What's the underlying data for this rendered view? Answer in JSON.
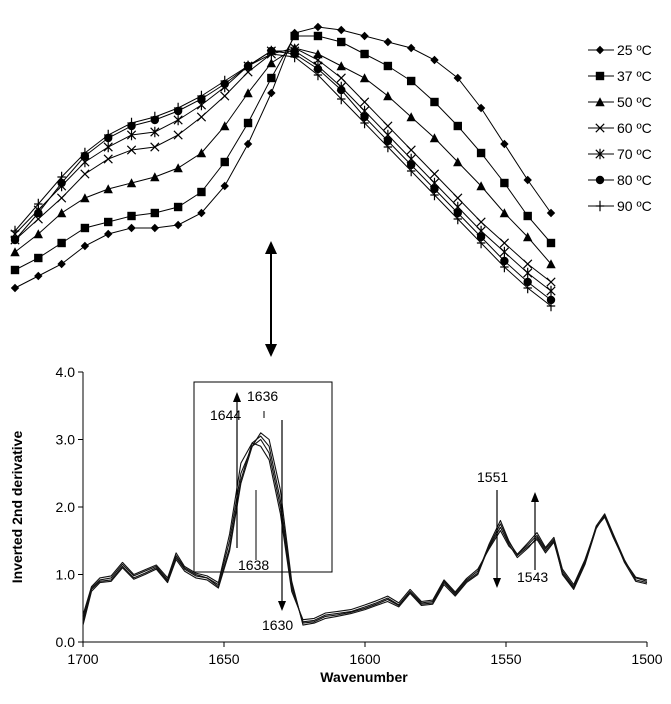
{
  "chart_data": [
    {
      "type": "line",
      "title": "",
      "xlabel": "",
      "ylabel": "",
      "x": [
        1660,
        1656,
        1652,
        1648,
        1644,
        1640,
        1636,
        1632,
        1628,
        1624,
        1620,
        1616,
        1612,
        1608,
        1604,
        1600,
        1596,
        1592,
        1588,
        1584,
        1580,
        1576,
        1572,
        1568
      ],
      "legend_position": "right",
      "series": [
        {
          "name": "25 ºC",
          "marker": "diamond",
          "values": [
            10,
            14,
            18,
            24,
            28,
            30,
            30,
            31,
            35,
            44,
            58,
            75,
            95,
            97,
            96,
            94,
            92,
            90,
            86,
            80,
            70,
            58,
            46,
            35
          ]
        },
        {
          "name": "37 ºC",
          "marker": "square",
          "values": [
            16,
            20,
            25,
            30,
            32,
            34,
            35,
            37,
            42,
            52,
            65,
            80,
            94,
            94,
            92,
            88,
            84,
            79,
            72,
            64,
            55,
            45,
            34,
            25
          ]
        },
        {
          "name": "50 ºC",
          "marker": "triangle",
          "values": [
            22,
            28,
            35,
            40,
            43,
            45,
            47,
            50,
            55,
            64,
            75,
            85,
            90,
            88,
            84,
            80,
            74,
            67,
            60,
            52,
            44,
            35,
            27,
            18
          ]
        },
        {
          "name": "60 ºC",
          "marker": "x",
          "values": [
            26,
            33,
            40,
            48,
            53,
            56,
            57,
            61,
            67,
            74,
            82,
            88,
            90,
            86,
            80,
            72,
            64,
            56,
            48,
            40,
            32,
            25,
            18,
            12
          ]
        },
        {
          "name": "70 ºC",
          "marker": "star",
          "values": [
            28,
            36,
            44,
            52,
            57,
            61,
            62,
            66,
            71,
            77,
            84,
            89,
            89,
            84,
            77,
            69,
            61,
            53,
            45,
            37,
            29,
            22,
            15,
            9
          ]
        },
        {
          "name": "80 ºC",
          "marker": "circle",
          "values": [
            26,
            35,
            45,
            54,
            60,
            64,
            66,
            69,
            73,
            78,
            84,
            89,
            88,
            83,
            76,
            67,
            59,
            51,
            43,
            35,
            27,
            19,
            12,
            6
          ]
        },
        {
          "name": "90 ºC",
          "marker": "plus",
          "values": [
            29,
            38,
            47,
            55,
            61,
            65,
            67,
            70,
            74,
            79,
            84,
            88,
            87,
            81,
            73,
            65,
            57,
            49,
            41,
            33,
            25,
            17,
            10,
            4
          ]
        }
      ]
    },
    {
      "type": "line",
      "title": "",
      "xlabel": "Wavenumber",
      "ylabel": "Inverted 2nd derivative",
      "xlim": [
        1700,
        1500
      ],
      "ylim": [
        0.0,
        4.0
      ],
      "x_ticks": [
        "1700",
        "1650",
        "1600",
        "1550",
        "1500"
      ],
      "y_ticks": [
        "0.0",
        "1.0",
        "2.0",
        "3.0",
        "4.0"
      ],
      "grid": false,
      "x": [
        1700,
        1697,
        1694,
        1690,
        1686,
        1682,
        1678,
        1674,
        1670,
        1667,
        1664,
        1660,
        1656,
        1652,
        1648,
        1644,
        1640,
        1637,
        1634,
        1630,
        1626,
        1622,
        1618,
        1614,
        1610,
        1605,
        1600,
        1596,
        1592,
        1588,
        1584,
        1580,
        1576,
        1572,
        1568,
        1564,
        1560,
        1556,
        1552,
        1549,
        1546,
        1542,
        1539,
        1536,
        1533,
        1530,
        1526,
        1522,
        1518,
        1515,
        1512,
        1508,
        1504,
        1500
      ],
      "series": [
        {
          "values": [
            0.35,
            0.8,
            0.92,
            0.95,
            1.15,
            0.98,
            1.05,
            1.12,
            0.92,
            1.28,
            1.1,
            1.0,
            0.95,
            0.85,
            1.5,
            2.5,
            2.9,
            3.0,
            2.8,
            2.0,
            0.8,
            0.3,
            0.32,
            0.4,
            0.42,
            0.45,
            0.52,
            0.58,
            0.65,
            0.55,
            0.75,
            0.58,
            0.6,
            0.9,
            0.72,
            0.92,
            1.05,
            1.4,
            1.7,
            1.45,
            1.25,
            1.4,
            1.55,
            1.35,
            1.5,
            1.05,
            0.82,
            1.2,
            1.7,
            1.85,
            1.55,
            1.2,
            0.95,
            0.9
          ]
        },
        {
          "values": [
            0.3,
            0.78,
            0.9,
            0.92,
            1.12,
            0.95,
            1.02,
            1.1,
            0.9,
            1.25,
            1.08,
            0.98,
            0.95,
            0.82,
            1.4,
            2.4,
            2.95,
            3.05,
            2.9,
            2.1,
            0.85,
            0.28,
            0.3,
            0.38,
            0.4,
            0.44,
            0.5,
            0.56,
            0.63,
            0.54,
            0.74,
            0.56,
            0.58,
            0.88,
            0.7,
            0.9,
            1.02,
            1.45,
            1.8,
            1.5,
            1.28,
            1.42,
            1.52,
            1.32,
            1.48,
            1.02,
            0.8,
            1.18,
            1.72,
            1.9,
            1.6,
            1.22,
            0.92,
            0.88
          ]
        },
        {
          "values": [
            0.25,
            0.75,
            0.88,
            0.9,
            1.1,
            0.93,
            1.0,
            1.08,
            0.88,
            1.22,
            1.05,
            0.95,
            0.92,
            0.8,
            1.35,
            2.35,
            2.9,
            3.1,
            3.0,
            2.25,
            0.9,
            0.25,
            0.28,
            0.35,
            0.38,
            0.42,
            0.48,
            0.54,
            0.6,
            0.52,
            0.72,
            0.54,
            0.56,
            0.85,
            0.68,
            0.88,
            1.0,
            1.42,
            1.75,
            1.48,
            1.3,
            1.45,
            1.58,
            1.38,
            1.52,
            1.0,
            0.78,
            1.15,
            1.68,
            1.88,
            1.58,
            1.18,
            0.9,
            0.86
          ]
        },
        {
          "values": [
            0.4,
            0.82,
            0.95,
            0.98,
            1.18,
            1.0,
            1.07,
            1.14,
            0.95,
            1.32,
            1.12,
            1.02,
            0.98,
            0.88,
            1.6,
            2.65,
            2.95,
            2.9,
            2.7,
            1.9,
            0.75,
            0.33,
            0.35,
            0.43,
            0.45,
            0.48,
            0.55,
            0.61,
            0.68,
            0.58,
            0.78,
            0.6,
            0.62,
            0.92,
            0.74,
            0.94,
            1.08,
            1.38,
            1.65,
            1.42,
            1.3,
            1.48,
            1.62,
            1.4,
            1.55,
            1.08,
            0.85,
            1.22,
            1.7,
            1.86,
            1.56,
            1.2,
            0.96,
            0.92
          ]
        }
      ]
    }
  ],
  "annotations": {
    "a1636": "1636",
    "a1644": "1644",
    "a1638": "1638",
    "a1630": "1630",
    "a1551": "1551",
    "a1543": "1543"
  }
}
